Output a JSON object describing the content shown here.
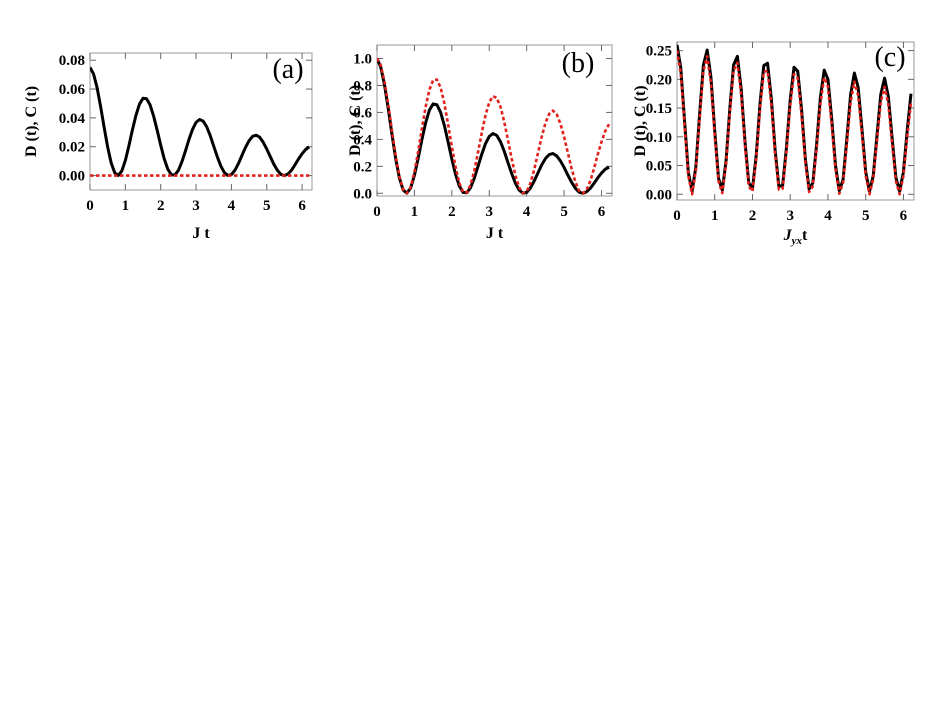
{
  "chart_data": [
    {
      "type": "line",
      "annotation": "(a)",
      "xlabel": "J t",
      "ylabel": "D (t), C (t)",
      "x": [
        0,
        0.1,
        0.2,
        0.3,
        0.4,
        0.5,
        0.6,
        0.7,
        0.8,
        0.9,
        1,
        1.1,
        1.2,
        1.3,
        1.4,
        1.5,
        1.6,
        1.7,
        1.8,
        1.9,
        2,
        2.1,
        2.2,
        2.3,
        2.4,
        2.5,
        2.6,
        2.7,
        2.8,
        2.9,
        3,
        3.1,
        3.2,
        3.3,
        3.4,
        3.5,
        3.6,
        3.7,
        3.8,
        3.9,
        4,
        4.1,
        4.2,
        4.3,
        4.4,
        4.5,
        4.6,
        4.7,
        4.8,
        4.9,
        5,
        5.1,
        5.2,
        5.3,
        5.4,
        5.5,
        5.6,
        5.7,
        5.8,
        5.9,
        6,
        6.1,
        6.2
      ],
      "xlim": [
        0,
        6.28
      ],
      "xticks": [
        0,
        1,
        2,
        3,
        4,
        5,
        6
      ],
      "ylim": [
        -0.01,
        0.085
      ],
      "yticks": [
        {
          "value": 0,
          "label": "0.00"
        },
        {
          "value": 0.02,
          "label": "0.02"
        },
        {
          "value": 0.04,
          "label": "0.04"
        },
        {
          "value": 0.06,
          "label": "0.06"
        },
        {
          "value": 0.08,
          "label": "0.08"
        }
      ],
      "series": [
        {
          "color": "#000000",
          "dashed": false,
          "values": [
            0.075,
            0.0705,
            0.061,
            0.0479,
            0.0334,
            0.0197,
            0.0087,
            0.0019,
            0.0001,
            0.0032,
            0.0105,
            0.0206,
            0.0317,
            0.0418,
            0.0496,
            0.0536,
            0.0533,
            0.049,
            0.0412,
            0.0314,
            0.0211,
            0.0116,
            0.0045,
            0.0006,
            0.0004,
            0.0036,
            0.0096,
            0.0171,
            0.0251,
            0.032,
            0.0369,
            0.0389,
            0.0378,
            0.0339,
            0.0278,
            0.0204,
            0.0131,
            0.0067,
            0.0021,
            0.0001,
            0.0007,
            0.0037,
            0.0084,
            0.0141,
            0.0196,
            0.0242,
            0.0272,
            0.028,
            0.0266,
            0.0231,
            0.0184,
            0.0131,
            0.0079,
            0.0037,
            0.0008,
            0,
            0.0011,
            0.0037,
            0.0075,
            0.0116,
            0.0152,
            0.0181,
            0.0199
          ]
        },
        {
          "color": "#e3211c",
          "dashed": true,
          "values": [
            0,
            0,
            0,
            0,
            0,
            0,
            0,
            0,
            0,
            0,
            0,
            0,
            0,
            0,
            0,
            0,
            0,
            0,
            0,
            0,
            0,
            0,
            0,
            0,
            0,
            0,
            0,
            0,
            0,
            0,
            0,
            0,
            0,
            0,
            0,
            0,
            0,
            0,
            0,
            0,
            0,
            0,
            0,
            0,
            0,
            0,
            0,
            0,
            0,
            0,
            0,
            0,
            0,
            0,
            0,
            0,
            0,
            0,
            0,
            0,
            0,
            0,
            0
          ]
        }
      ]
    },
    {
      "type": "line",
      "annotation": "(b)",
      "xlabel": "J t",
      "ylabel": "D (t), C (t)",
      "x": [
        0,
        0.1,
        0.2,
        0.3,
        0.4,
        0.5,
        0.6,
        0.7,
        0.8,
        0.9,
        1,
        1.1,
        1.2,
        1.3,
        1.4,
        1.5,
        1.6,
        1.7,
        1.8,
        1.9,
        2,
        2.1,
        2.2,
        2.3,
        2.4,
        2.5,
        2.6,
        2.7,
        2.8,
        2.9,
        3,
        3.1,
        3.2,
        3.3,
        3.4,
        3.5,
        3.6,
        3.7,
        3.8,
        3.9,
        4,
        4.1,
        4.2,
        4.3,
        4.4,
        4.5,
        4.6,
        4.7,
        4.8,
        4.9,
        5,
        5.1,
        5.2,
        5.3,
        5.4,
        5.5,
        5.6,
        5.7,
        5.8,
        5.9,
        6,
        6.1,
        6.2
      ],
      "xlim": [
        0,
        6.28
      ],
      "xticks": [
        0,
        1,
        2,
        3,
        4,
        5,
        6
      ],
      "ylim": [
        -0.02,
        1.1
      ],
      "yticks": [
        {
          "value": 0,
          "label": "0.0"
        },
        {
          "value": 0.2,
          "label": "0.2"
        },
        {
          "value": 0.4,
          "label": "0.4"
        },
        {
          "value": 0.6,
          "label": "0.6"
        },
        {
          "value": 0.8,
          "label": "0.8"
        },
        {
          "value": 1,
          "label": "1.0"
        }
      ],
      "series": [
        {
          "color": "#000000",
          "dashed": false,
          "values": [
            1,
            0.936,
            0.805,
            0.63,
            0.437,
            0.256,
            0.112,
            0.024,
            0.001,
            0.04,
            0.133,
            0.26,
            0.398,
            0.523,
            0.617,
            0.663,
            0.657,
            0.601,
            0.503,
            0.381,
            0.254,
            0.14,
            0.054,
            0.007,
            0.004,
            0.042,
            0.112,
            0.2,
            0.29,
            0.369,
            0.422,
            0.443,
            0.429,
            0.383,
            0.312,
            0.228,
            0.146,
            0.074,
            0.023,
            0.001,
            0.007,
            0.04,
            0.091,
            0.151,
            0.21,
            0.257,
            0.287,
            0.295,
            0.278,
            0.241,
            0.192,
            0.135,
            0.082,
            0.038,
            0.009,
            0,
            0.011,
            0.037,
            0.074,
            0.115,
            0.15,
            0.179,
            0.194
          ]
        },
        {
          "color": "#e3211c",
          "dashed": true,
          "values": [
            1,
            0.951,
            0.83,
            0.66,
            0.465,
            0.277,
            0.123,
            0.027,
            0.001,
            0.046,
            0.156,
            0.309,
            0.48,
            0.642,
            0.768,
            0.839,
            0.844,
            0.784,
            0.667,
            0.512,
            0.347,
            0.194,
            0.076,
            0.01,
            0.006,
            0.062,
            0.168,
            0.304,
            0.449,
            0.58,
            0.675,
            0.72,
            0.708,
            0.641,
            0.53,
            0.395,
            0.256,
            0.132,
            0.042,
            0.002,
            0.014,
            0.075,
            0.174,
            0.296,
            0.417,
            0.52,
            0.589,
            0.613,
            0.588,
            0.518,
            0.419,
            0.3,
            0.183,
            0.086,
            0.02,
            0,
            0.026,
            0.091,
            0.184,
            0.289,
            0.382,
            0.462,
            0.512
          ]
        }
      ]
    },
    {
      "type": "line",
      "annotation": "(c)",
      "xlabel": "J",
      "xlabel_sub": "yx",
      "xlabel_end": "t",
      "ylabel": "D (t), C (t)",
      "x": [
        0,
        0.1,
        0.2,
        0.3,
        0.4,
        0.5,
        0.6,
        0.7,
        0.8,
        0.9,
        1,
        1.1,
        1.2,
        1.3,
        1.4,
        1.5,
        1.6,
        1.7,
        1.8,
        1.9,
        2,
        2.1,
        2.2,
        2.3,
        2.4,
        2.5,
        2.6,
        2.7,
        2.8,
        2.9,
        3,
        3.1,
        3.2,
        3.3,
        3.4,
        3.5,
        3.6,
        3.7,
        3.8,
        3.9,
        4,
        4.1,
        4.2,
        4.3,
        4.4,
        4.5,
        4.6,
        4.7,
        4.8,
        4.9,
        5,
        5.1,
        5.2,
        5.3,
        5.4,
        5.5,
        5.6,
        5.7,
        5.8,
        5.9,
        6,
        6.1,
        6.2
      ],
      "xlim": [
        0,
        6.28
      ],
      "xticks": [
        0,
        1,
        2,
        3,
        4,
        5,
        6
      ],
      "ylim": [
        -0.01,
        0.265
      ],
      "yticks": [
        {
          "value": 0,
          "label": "0.00"
        },
        {
          "value": 0.05,
          "label": "0.05"
        },
        {
          "value": 0.1,
          "label": "0.10"
        },
        {
          "value": 0.15,
          "label": "0.15"
        },
        {
          "value": 0.2,
          "label": "0.20"
        },
        {
          "value": 0.25,
          "label": "0.25"
        }
      ],
      "series": [
        {
          "color": "#000000",
          "dashed": false,
          "values": [
            0.26,
            0.22,
            0.128,
            0.038,
            0.005,
            0.048,
            0.14,
            0.225,
            0.251,
            0.203,
            0.11,
            0.028,
            0.007,
            0.058,
            0.149,
            0.225,
            0.24,
            0.184,
            0.093,
            0.02,
            0.01,
            0.068,
            0.158,
            0.224,
            0.228,
            0.166,
            0.077,
            0.013,
            0.016,
            0.081,
            0.164,
            0.221,
            0.214,
            0.148,
            0.062,
            0.009,
            0.02,
            0.087,
            0.169,
            0.216,
            0.2,
            0.131,
            0.05,
            0.006,
            0.025,
            0.096,
            0.173,
            0.211,
            0.186,
            0.114,
            0.039,
            0.005,
            0.032,
            0.103,
            0.174,
            0.202,
            0.17,
            0.098,
            0.029,
            0.005,
            0.039,
            0.111,
            0.175
          ]
        },
        {
          "color": "#e3211c",
          "dashed": true,
          "values": [
            0.25,
            0.211,
            0.12,
            0.032,
            0,
            0.042,
            0.132,
            0.215,
            0.24,
            0.193,
            0.102,
            0.023,
            0.002,
            0.052,
            0.141,
            0.215,
            0.229,
            0.174,
            0.085,
            0.014,
            0.005,
            0.061,
            0.148,
            0.213,
            0.215,
            0.156,
            0.069,
            0.008,
            0.01,
            0.073,
            0.154,
            0.209,
            0.202,
            0.138,
            0.055,
            0.004,
            0.014,
            0.079,
            0.157,
            0.203,
            0.187,
            0.12,
            0.043,
            0.001,
            0.02,
            0.086,
            0.16,
            0.196,
            0.172,
            0.104,
            0.032,
            0,
            0.026,
            0.093,
            0.161,
            0.187,
            0.157,
            0.088,
            0.023,
            0,
            0.032,
            0.1,
            0.16
          ]
        }
      ]
    }
  ]
}
